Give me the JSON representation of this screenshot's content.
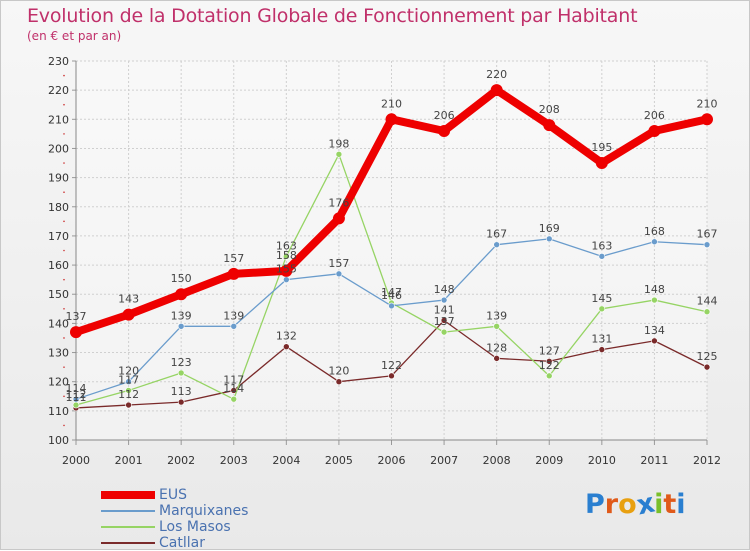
{
  "header": {
    "title": "Evolution de la Dotation Globale de Fonctionnement par Habitant",
    "subtitle": "(en € et par an)"
  },
  "logo": {
    "letters": [
      "P",
      "r",
      "o",
      "x",
      "i",
      "t",
      "i"
    ],
    "colors": [
      "#2a7fd0",
      "#e05a1a",
      "#e8a010",
      "#2a7fd0",
      "#7abf2a",
      "#e05a1a",
      "#2a7fd0"
    ]
  },
  "chart_data": {
    "type": "line",
    "title": "Evolution de la Dotation Globale de Fonctionnement par Habitant",
    "ylabel": "(en € et par an)",
    "xlabel": "",
    "x": [
      "2000",
      "2001",
      "2002",
      "2003",
      "2004",
      "2005",
      "2006",
      "2007",
      "2008",
      "2009",
      "2010",
      "2011",
      "2012"
    ],
    "ylim": [
      100,
      230
    ],
    "yticks": [
      100,
      110,
      120,
      130,
      140,
      150,
      160,
      170,
      180,
      190,
      200,
      210,
      220,
      230
    ],
    "grid": true,
    "legend": "bottom-left",
    "series": [
      {
        "name": "EUS",
        "color": "#ee0000",
        "values": [
          137,
          143,
          150,
          157,
          158,
          176,
          210,
          206,
          220,
          208,
          195,
          206,
          210
        ],
        "labels": [
          "137",
          "143",
          "150",
          "157",
          "158",
          "176",
          "210",
          "206",
          "220",
          "208",
          "195",
          "206",
          "210"
        ]
      },
      {
        "name": "Marquixanes",
        "color": "#6a9ccc",
        "values": [
          114,
          120,
          139,
          139,
          155,
          157,
          146,
          148,
          167,
          169,
          163,
          168,
          167
        ],
        "labels": [
          "114",
          "120",
          "139",
          "139",
          "155",
          "157",
          "146",
          "148",
          "167",
          "169",
          "163",
          "168",
          "167"
        ]
      },
      {
        "name": "Los Masos",
        "color": "#96d464",
        "values": [
          112,
          117,
          123,
          114,
          163,
          198,
          147,
          137,
          139,
          122,
          145,
          148,
          144
        ],
        "labels": [
          "112",
          "117",
          "123",
          "114",
          "163",
          "198",
          "147",
          "137",
          "139",
          "122",
          "145",
          "148",
          "144"
        ]
      },
      {
        "name": "Catllar",
        "color": "#7a2a2a",
        "values": [
          111,
          112,
          113,
          117,
          132,
          120,
          122,
          141,
          128,
          127,
          131,
          134,
          125
        ],
        "labels": [
          "111",
          "112",
          "113",
          "117",
          "132",
          "120",
          "122",
          "141",
          "128",
          "127",
          "131",
          "134",
          "125"
        ]
      }
    ]
  }
}
